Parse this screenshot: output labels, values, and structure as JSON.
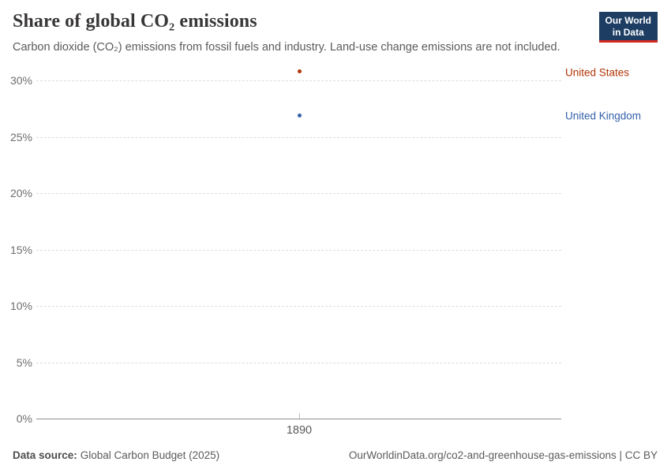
{
  "header": {
    "title": "Share of global CO₂ emissions",
    "subtitle": "Carbon dioxide (CO₂) emissions from fossil fuels and industry. Land-use change emissions are not included.",
    "logo": {
      "line1": "Our World",
      "line2": "in Data",
      "background_color": "#1d3d63",
      "accent_color": "#d42a20"
    }
  },
  "chart_data": {
    "type": "scatter",
    "title": "Share of global CO₂ emissions",
    "x": [
      1890
    ],
    "xticks": [
      1890
    ],
    "series": [
      {
        "name": "United States",
        "values": [
          30.8
        ],
        "color": "#b13507"
      },
      {
        "name": "United Kingdom",
        "values": [
          26.9
        ],
        "color": "#3360a9"
      }
    ],
    "ylim": [
      0,
      31
    ],
    "yticks": [
      0,
      5,
      10,
      15,
      20,
      25,
      30
    ],
    "ytick_suffix": "%",
    "grid": "horizontal dashed",
    "legend_position": "right edge entity labels",
    "gridline_color": "#dcdcdc",
    "axis_color": "#8f8f8f"
  },
  "footer": {
    "source_label": "Data source:",
    "source_value": "Global Carbon Budget (2025)",
    "attribution": "OurWorldinData.org/co2-and-greenhouse-gas-emissions | CC BY"
  }
}
